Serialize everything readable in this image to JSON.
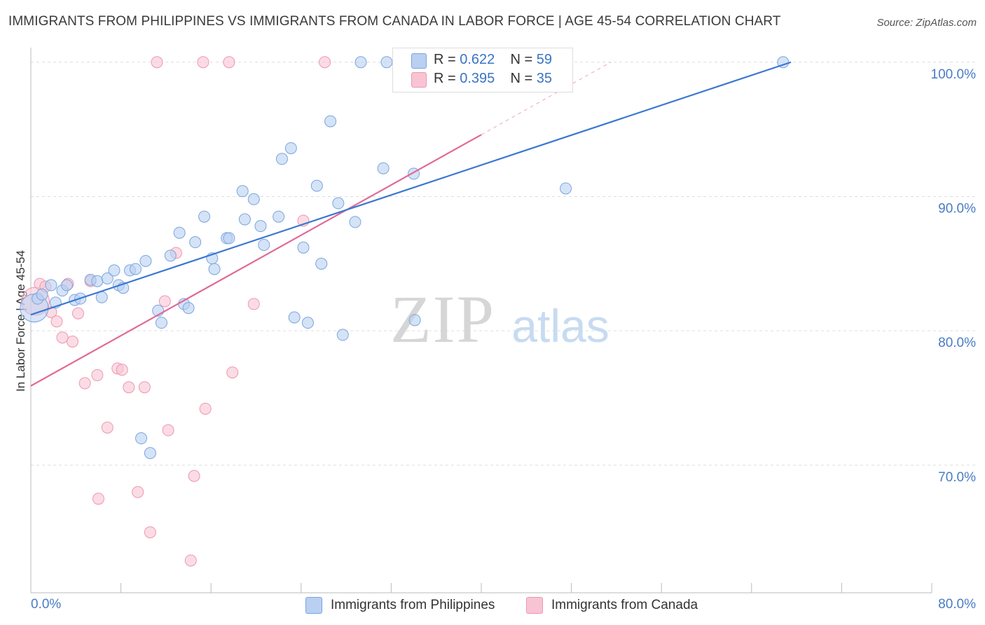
{
  "title": "IMMIGRANTS FROM PHILIPPINES VS IMMIGRANTS FROM CANADA IN LABOR FORCE | AGE 45-54 CORRELATION CHART",
  "source": "Source: ZipAtlas.com",
  "watermark": {
    "zip": "ZIP",
    "atlas": "atlas"
  },
  "legend": {
    "blue": {
      "r_label": "R = ",
      "r_value": "0.622",
      "n_label": "N = ",
      "n_value": "59"
    },
    "pink": {
      "r_label": "R = ",
      "r_value": "0.395",
      "n_label": "N = ",
      "n_value": "35"
    }
  },
  "colors": {
    "blue_fill": "#b9d0f2",
    "blue_stroke": "#7aa5de",
    "blue_line": "#3a78d0",
    "pink_fill": "#f8c4d3",
    "pink_stroke": "#ec97b2",
    "pink_line": "#e06a96",
    "tick_text": "#4a7cc4",
    "grid": "#dddddd"
  },
  "chart_data": {
    "type": "scatter",
    "title": "IMMIGRANTS FROM PHILIPPINES VS IMMIGRANTS FROM CANADA IN LABOR FORCE | AGE 45-54 CORRELATION CHART",
    "xlabel": "",
    "ylabel": "In Labor Force | Age 45-54",
    "xlim": [
      0,
      80
    ],
    "ylim": [
      60.5,
      101.5
    ],
    "x_tick_labels": [
      "0.0%",
      "80.0%"
    ],
    "y_ticks": [
      70,
      80,
      90,
      100
    ],
    "y_tick_labels": [
      "70.0%",
      "80.0%",
      "90.0%",
      "100.0%"
    ],
    "grid": true,
    "legend_position": "bottom",
    "series": [
      {
        "name": "Immigrants from Philippines",
        "color": "#7aa5de",
        "trend": {
          "x": [
            0.0,
            67.5
          ],
          "y": [
            81.2,
            100.0
          ]
        },
        "points": [
          {
            "x": 0.3,
            "y": 81.7,
            "big": true
          },
          {
            "x": 0.6,
            "y": 82.4
          },
          {
            "x": 1.0,
            "y": 82.7
          },
          {
            "x": 1.8,
            "y": 83.4
          },
          {
            "x": 2.2,
            "y": 82.1
          },
          {
            "x": 2.8,
            "y": 83.0
          },
          {
            "x": 3.2,
            "y": 83.4
          },
          {
            "x": 3.9,
            "y": 82.3
          },
          {
            "x": 4.4,
            "y": 82.4
          },
          {
            "x": 5.3,
            "y": 83.8
          },
          {
            "x": 5.9,
            "y": 83.7
          },
          {
            "x": 6.3,
            "y": 82.5
          },
          {
            "x": 6.8,
            "y": 83.9
          },
          {
            "x": 7.4,
            "y": 84.5
          },
          {
            "x": 7.8,
            "y": 83.4
          },
          {
            "x": 8.2,
            "y": 83.2
          },
          {
            "x": 8.8,
            "y": 84.5
          },
          {
            "x": 9.3,
            "y": 84.6
          },
          {
            "x": 10.2,
            "y": 85.2
          },
          {
            "x": 11.3,
            "y": 81.5
          },
          {
            "x": 11.6,
            "y": 80.6
          },
          {
            "x": 12.4,
            "y": 85.6
          },
          {
            "x": 13.2,
            "y": 87.3
          },
          {
            "x": 13.6,
            "y": 82.0
          },
          {
            "x": 14.0,
            "y": 81.7
          },
          {
            "x": 14.6,
            "y": 86.6
          },
          {
            "x": 15.4,
            "y": 88.5
          },
          {
            "x": 16.1,
            "y": 85.4
          },
          {
            "x": 16.3,
            "y": 84.6
          },
          {
            "x": 17.4,
            "y": 86.9
          },
          {
            "x": 17.6,
            "y": 86.9
          },
          {
            "x": 18.8,
            "y": 90.4
          },
          {
            "x": 19.0,
            "y": 88.3
          },
          {
            "x": 19.8,
            "y": 89.8
          },
          {
            "x": 20.4,
            "y": 87.8
          },
          {
            "x": 20.7,
            "y": 86.4
          },
          {
            "x": 22.0,
            "y": 88.5
          },
          {
            "x": 22.3,
            "y": 92.8
          },
          {
            "x": 23.1,
            "y": 93.6
          },
          {
            "x": 23.4,
            "y": 81.0
          },
          {
            "x": 24.2,
            "y": 86.2
          },
          {
            "x": 24.6,
            "y": 80.6
          },
          {
            "x": 25.4,
            "y": 90.8
          },
          {
            "x": 25.8,
            "y": 85.0
          },
          {
            "x": 26.6,
            "y": 95.6
          },
          {
            "x": 27.3,
            "y": 89.5
          },
          {
            "x": 27.7,
            "y": 79.7
          },
          {
            "x": 28.8,
            "y": 88.1
          },
          {
            "x": 29.3,
            "y": 100.0
          },
          {
            "x": 31.3,
            "y": 92.1
          },
          {
            "x": 31.6,
            "y": 100.0
          },
          {
            "x": 34.0,
            "y": 91.7
          },
          {
            "x": 34.1,
            "y": 80.8
          },
          {
            "x": 9.8,
            "y": 72.0
          },
          {
            "x": 10.6,
            "y": 70.9
          },
          {
            "x": 47.5,
            "y": 90.6
          },
          {
            "x": 66.8,
            "y": 100.0
          }
        ]
      },
      {
        "name": "Immigrants from Canada",
        "color": "#ec97b2",
        "trend": {
          "x": [
            0.0,
            40.0
          ],
          "y": [
            75.9,
            94.6
          ]
        },
        "trend_dashed": {
          "x": [
            40.0,
            51.5
          ],
          "y": [
            94.6,
            100.0
          ]
        },
        "points": [
          {
            "x": 0.4,
            "y": 82.2,
            "big": true
          },
          {
            "x": 0.8,
            "y": 83.5
          },
          {
            "x": 1.3,
            "y": 83.3
          },
          {
            "x": 1.8,
            "y": 81.4
          },
          {
            "x": 2.3,
            "y": 80.7
          },
          {
            "x": 2.8,
            "y": 79.5
          },
          {
            "x": 3.3,
            "y": 83.5
          },
          {
            "x": 3.7,
            "y": 79.2
          },
          {
            "x": 4.2,
            "y": 81.3
          },
          {
            "x": 4.8,
            "y": 76.1
          },
          {
            "x": 5.3,
            "y": 83.7
          },
          {
            "x": 5.9,
            "y": 76.7
          },
          {
            "x": 6.8,
            "y": 72.8
          },
          {
            "x": 7.7,
            "y": 77.2
          },
          {
            "x": 8.1,
            "y": 77.1
          },
          {
            "x": 8.7,
            "y": 75.8
          },
          {
            "x": 9.5,
            "y": 68.0
          },
          {
            "x": 10.1,
            "y": 75.8
          },
          {
            "x": 10.6,
            "y": 65.0
          },
          {
            "x": 11.2,
            "y": 100.0
          },
          {
            "x": 11.9,
            "y": 82.2
          },
          {
            "x": 12.2,
            "y": 72.6
          },
          {
            "x": 12.9,
            "y": 85.8
          },
          {
            "x": 14.2,
            "y": 62.9
          },
          {
            "x": 14.5,
            "y": 69.2
          },
          {
            "x": 15.5,
            "y": 74.2
          },
          {
            "x": 17.6,
            "y": 100.0
          },
          {
            "x": 17.9,
            "y": 76.9
          },
          {
            "x": 19.8,
            "y": 82.0
          },
          {
            "x": 15.3,
            "y": 100.0
          },
          {
            "x": 24.2,
            "y": 88.2
          },
          {
            "x": 26.1,
            "y": 100.0
          },
          {
            "x": 6.0,
            "y": 67.5
          }
        ]
      }
    ]
  },
  "bottom_legend": {
    "blue_label": "Immigrants from Philippines",
    "pink_label": "Immigrants from Canada"
  }
}
